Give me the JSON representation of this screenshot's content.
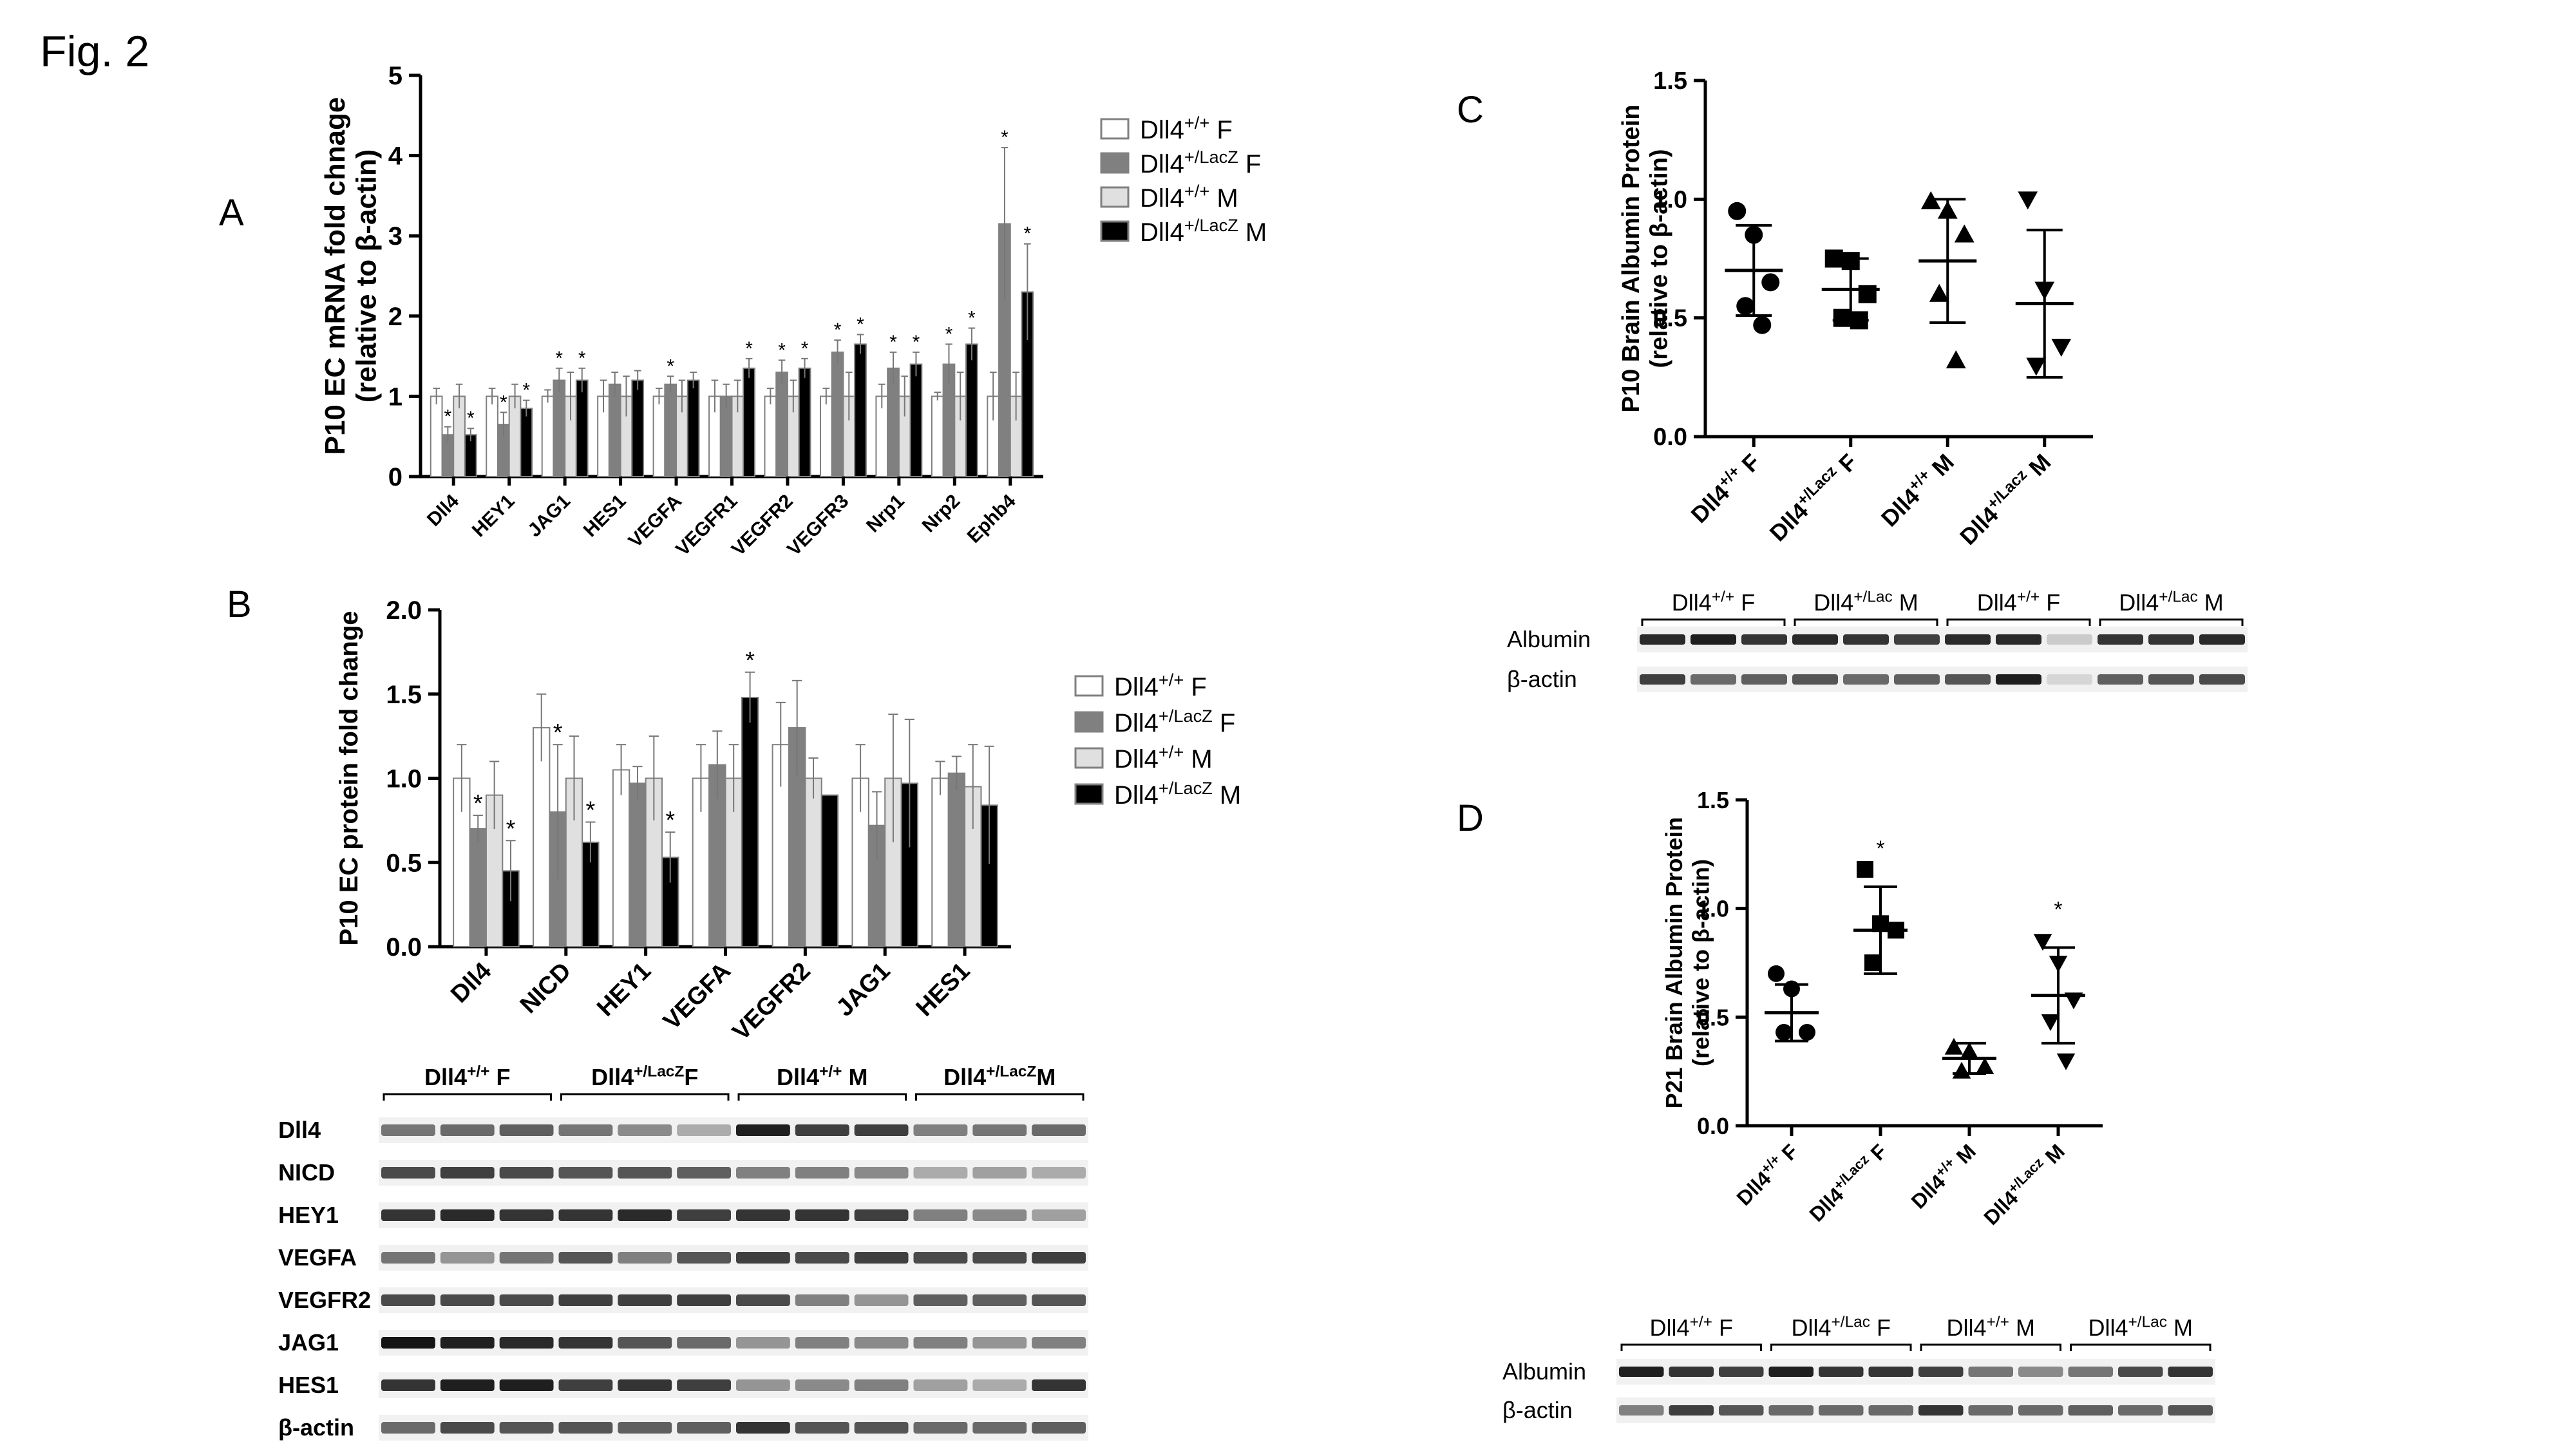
{
  "figure_label": "Fig. 2",
  "chart_data": [
    {
      "panel": "A",
      "type": "bar",
      "ylabel": "P10 EC mRNA fold chnage",
      "ylabel2": "(relative to β-actin)",
      "ylim": [
        0,
        5
      ],
      "yticks": [
        "0",
        "1",
        "2",
        "3",
        "4",
        "5"
      ],
      "categories": [
        "Dll4",
        "HEY1",
        "JAG1",
        "HES1",
        "VEGFA",
        "VEGFR1",
        "VEGFR2",
        "VEGFR3",
        "Nrp1",
        "Nrp2",
        "Ephb4"
      ],
      "series": [
        {
          "name": "Dll4+/+ F",
          "base": "Dll4",
          "sup": "+/+",
          "suffix": " F",
          "color": "#ffffff",
          "values": [
            1.0,
            1.0,
            1.0,
            1.0,
            1.0,
            1.0,
            1.0,
            1.0,
            1.0,
            1.0,
            1.0
          ],
          "errors": [
            0.1,
            0.1,
            0.08,
            0.2,
            0.1,
            0.2,
            0.1,
            0.1,
            0.15,
            0.05,
            0.3
          ],
          "sig": [
            false,
            false,
            false,
            false,
            false,
            false,
            false,
            false,
            false,
            false,
            false
          ]
        },
        {
          "name": "Dll4+/LacZ F",
          "base": "Dll4",
          "sup": "+/LacZ",
          "suffix": " F",
          "color": "#808080",
          "values": [
            0.52,
            0.65,
            1.2,
            1.15,
            1.15,
            1.0,
            1.3,
            1.55,
            1.35,
            1.4,
            3.15
          ],
          "errors": [
            0.1,
            0.15,
            0.15,
            0.15,
            0.1,
            0.15,
            0.15,
            0.15,
            0.2,
            0.25,
            0.95
          ],
          "sig": [
            true,
            true,
            true,
            false,
            true,
            false,
            true,
            true,
            true,
            true,
            true
          ]
        },
        {
          "name": "Dll4+/+ M",
          "base": "Dll4",
          "sup": "+/+",
          "suffix": " M",
          "color": "#e0e0e0",
          "values": [
            1.0,
            1.0,
            1.0,
            1.0,
            1.0,
            1.0,
            1.0,
            1.0,
            1.0,
            1.0,
            1.0
          ],
          "errors": [
            0.15,
            0.15,
            0.3,
            0.25,
            0.2,
            0.2,
            0.2,
            0.3,
            0.25,
            0.3,
            0.3
          ],
          "sig": [
            false,
            false,
            false,
            false,
            false,
            false,
            false,
            false,
            false,
            false,
            false
          ]
        },
        {
          "name": "Dll4+/LacZ M",
          "base": "Dll4",
          "sup": "+/LacZ",
          "suffix": " M",
          "color": "#000000",
          "values": [
            0.52,
            0.85,
            1.2,
            1.2,
            1.2,
            1.35,
            1.35,
            1.65,
            1.4,
            1.65,
            2.3
          ],
          "errors": [
            0.08,
            0.1,
            0.15,
            0.12,
            0.1,
            0.12,
            0.12,
            0.12,
            0.15,
            0.2,
            0.6
          ],
          "sig": [
            true,
            true,
            true,
            false,
            false,
            true,
            true,
            true,
            true,
            true,
            true
          ]
        }
      ]
    },
    {
      "panel": "B",
      "type": "bar",
      "ylabel": "P10 EC protein fold change",
      "ylim": [
        0,
        2
      ],
      "yticks": [
        "0.0",
        "0.5",
        "1.0",
        "1.5",
        "2.0"
      ],
      "categories": [
        "Dll4",
        "NICD",
        "HEY1",
        "VEGFA",
        "VEGFR2",
        "JAG1",
        "HES1"
      ],
      "series": [
        {
          "name": "Dll4+/+ F",
          "base": "Dll4",
          "sup": "+/+",
          "suffix": " F",
          "color": "#ffffff",
          "values": [
            1.0,
            1.3,
            1.05,
            1.0,
            1.2,
            1.0,
            1.0
          ],
          "errors": [
            0.2,
            0.2,
            0.15,
            0.2,
            0.25,
            0.2,
            0.1
          ],
          "sig": [
            false,
            false,
            false,
            false,
            false,
            false,
            false
          ]
        },
        {
          "name": "Dll4+/LacZ F",
          "base": "Dll4",
          "sup": "+/LacZ",
          "suffix": " F",
          "color": "#808080",
          "values": [
            0.7,
            0.8,
            0.97,
            1.08,
            1.3,
            0.72,
            1.03
          ],
          "errors": [
            0.08,
            0.4,
            0.1,
            0.2,
            0.28,
            0.2,
            0.1
          ],
          "sig": [
            true,
            true,
            false,
            false,
            false,
            false,
            false
          ]
        },
        {
          "name": "Dll4+/+ M",
          "base": "Dll4",
          "sup": "+/+",
          "suffix": " M",
          "color": "#e0e0e0",
          "values": [
            0.9,
            1.0,
            1.0,
            1.0,
            1.0,
            1.0,
            0.95
          ],
          "errors": [
            0.2,
            0.25,
            0.25,
            0.2,
            0.12,
            0.38,
            0.25
          ],
          "sig": [
            false,
            false,
            false,
            false,
            false,
            false,
            false
          ]
        },
        {
          "name": "Dll4+/LacZ M",
          "base": "Dll4",
          "sup": "+/LacZ",
          "suffix": " M",
          "color": "#000000",
          "values": [
            0.45,
            0.62,
            0.53,
            1.48,
            0.9,
            0.97,
            0.84
          ],
          "errors": [
            0.18,
            0.12,
            0.15,
            0.15,
            0,
            0.38,
            0.35
          ],
          "sig": [
            true,
            true,
            true,
            true,
            false,
            false,
            false
          ]
        }
      ]
    },
    {
      "panel": "C",
      "type": "scatter",
      "ylabel": "P10 Brain Albumin Protein",
      "ylabel2": "(relative to β-actin)",
      "ylim": [
        0,
        1.5
      ],
      "yticks": [
        "0.0",
        "0.5",
        "1.0",
        "1.5"
      ],
      "groups": [
        {
          "base": "Dll4",
          "sup": "+/+",
          "suffix": " F",
          "marker": "circle",
          "mean": 0.7,
          "sd": 0.19,
          "points": [
            0.95,
            0.85,
            0.65,
            0.55,
            0.47
          ],
          "sig": false
        },
        {
          "base": "Dll4",
          "sup": "+/Lacz",
          "suffix": " F",
          "marker": "square",
          "mean": 0.62,
          "sd": 0.13,
          "points": [
            0.75,
            0.74,
            0.6,
            0.5,
            0.49
          ],
          "sig": false
        },
        {
          "base": "Dll4",
          "sup": "+/+",
          "suffix": " M",
          "marker": "triangle",
          "mean": 0.74,
          "sd": 0.26,
          "points": [
            0.99,
            0.95,
            0.85,
            0.6,
            0.32
          ],
          "sig": false
        },
        {
          "base": "Dll4",
          "sup": "+/Lacz",
          "suffix": " M",
          "marker": "triangle-down",
          "mean": 0.56,
          "sd": 0.31,
          "points": [
            1.0,
            0.62,
            0.38,
            0.3
          ],
          "sig": false
        }
      ]
    },
    {
      "panel": "D",
      "type": "scatter",
      "ylabel": "P21 Brain Albumin Protein",
      "ylabel2": "(relative to β-actin)",
      "ylim": [
        0,
        1.5
      ],
      "yticks": [
        "0.0",
        "0.5",
        "1.0",
        "1.5"
      ],
      "sig_label": "*",
      "groups": [
        {
          "base": "Dll4",
          "sup": "+/+",
          "suffix": " F",
          "marker": "circle",
          "mean": 0.52,
          "sd": 0.13,
          "points": [
            0.7,
            0.63,
            0.43,
            0.43
          ],
          "sig": false
        },
        {
          "base": "Dll4",
          "sup": "+/Lacz",
          "suffix": " F",
          "marker": "square",
          "mean": 0.9,
          "sd": 0.2,
          "points": [
            1.18,
            0.93,
            0.9,
            0.75
          ],
          "sig": true
        },
        {
          "base": "Dll4",
          "sup": "+/+",
          "suffix": " M",
          "marker": "triangle",
          "mean": 0.31,
          "sd": 0.07,
          "points": [
            0.36,
            0.34,
            0.27,
            0.25
          ],
          "sig": false
        },
        {
          "base": "Dll4",
          "sup": "+/Lacz",
          "suffix": " M",
          "marker": "triangle-down",
          "mean": 0.6,
          "sd": 0.22,
          "points": [
            0.85,
            0.75,
            0.58,
            0.48,
            0.3
          ],
          "sig": true
        }
      ]
    }
  ],
  "blots": {
    "B": {
      "groups": [
        {
          "base": "Dll4",
          "sup": "+/+",
          "suffix": " F"
        },
        {
          "base": "Dll4",
          "sup": "+/LacZ",
          "suffix": "F"
        },
        {
          "base": "Dll4",
          "sup": "+/+",
          "suffix": " M"
        },
        {
          "base": "Dll4",
          "sup": "+/LacZ",
          "suffix": "M"
        }
      ],
      "rows": [
        {
          "label": "Dll4",
          "intensity": [
            0.55,
            0.6,
            0.65,
            0.55,
            0.45,
            0.3,
            0.95,
            0.8,
            0.8,
            0.5,
            0.55,
            0.6
          ]
        },
        {
          "label": "NICD",
          "intensity": [
            0.75,
            0.8,
            0.75,
            0.7,
            0.7,
            0.65,
            0.5,
            0.5,
            0.45,
            0.3,
            0.35,
            0.3
          ]
        },
        {
          "label": "HEY1",
          "intensity": [
            0.85,
            0.9,
            0.85,
            0.85,
            0.9,
            0.8,
            0.85,
            0.85,
            0.8,
            0.5,
            0.45,
            0.35
          ]
        },
        {
          "label": "VEGFA",
          "intensity": [
            0.55,
            0.4,
            0.55,
            0.7,
            0.5,
            0.7,
            0.8,
            0.75,
            0.8,
            0.75,
            0.75,
            0.8
          ]
        },
        {
          "label": "VEGFR2",
          "intensity": [
            0.75,
            0.75,
            0.75,
            0.8,
            0.8,
            0.8,
            0.75,
            0.5,
            0.4,
            0.65,
            0.65,
            0.7
          ]
        },
        {
          "label": "JAG1",
          "intensity": [
            1.0,
            0.95,
            0.9,
            0.85,
            0.7,
            0.6,
            0.4,
            0.5,
            0.45,
            0.5,
            0.4,
            0.5
          ]
        },
        {
          "label": "HES1",
          "intensity": [
            0.85,
            0.95,
            0.95,
            0.8,
            0.85,
            0.8,
            0.4,
            0.45,
            0.5,
            0.35,
            0.3,
            0.85
          ]
        },
        {
          "label": "β-actin",
          "intensity": [
            0.6,
            0.75,
            0.7,
            0.7,
            0.65,
            0.65,
            0.85,
            0.7,
            0.7,
            0.6,
            0.6,
            0.65
          ]
        }
      ]
    },
    "C": {
      "groups": [
        {
          "base": "Dll4",
          "sup": "+/+",
          "suffix": " F"
        },
        {
          "base": "Dll4",
          "sup": "+/Lac",
          "suffix": " M"
        },
        {
          "base": "Dll4",
          "sup": "+/+",
          "suffix": " F"
        },
        {
          "base": "Dll4",
          "sup": "+/Lac",
          "suffix": " M"
        }
      ],
      "rows": [
        {
          "label": "Albumin",
          "intensity": [
            0.9,
            0.95,
            0.85,
            0.9,
            0.85,
            0.8,
            0.9,
            0.9,
            0.15,
            0.85,
            0.85,
            0.9
          ]
        },
        {
          "label": "β-actin",
          "intensity": [
            0.8,
            0.6,
            0.65,
            0.7,
            0.6,
            0.65,
            0.7,
            0.95,
            0.1,
            0.65,
            0.7,
            0.75
          ]
        }
      ]
    },
    "D": {
      "groups": [
        {
          "base": "Dll4",
          "sup": "+/+",
          "suffix": " F"
        },
        {
          "base": "Dll4",
          "sup": "+/Lac",
          "suffix": " F"
        },
        {
          "base": "Dll4",
          "sup": "+/+",
          "suffix": " M"
        },
        {
          "base": "Dll4",
          "sup": "+/Lac",
          "suffix": " M"
        }
      ],
      "rows": [
        {
          "label": "Albumin",
          "intensity": [
            0.95,
            0.85,
            0.8,
            0.95,
            0.85,
            0.85,
            0.8,
            0.55,
            0.45,
            0.55,
            0.75,
            0.85
          ]
        },
        {
          "label": "β-actin",
          "intensity": [
            0.5,
            0.8,
            0.7,
            0.6,
            0.6,
            0.6,
            0.85,
            0.6,
            0.6,
            0.65,
            0.6,
            0.7
          ]
        }
      ]
    }
  }
}
